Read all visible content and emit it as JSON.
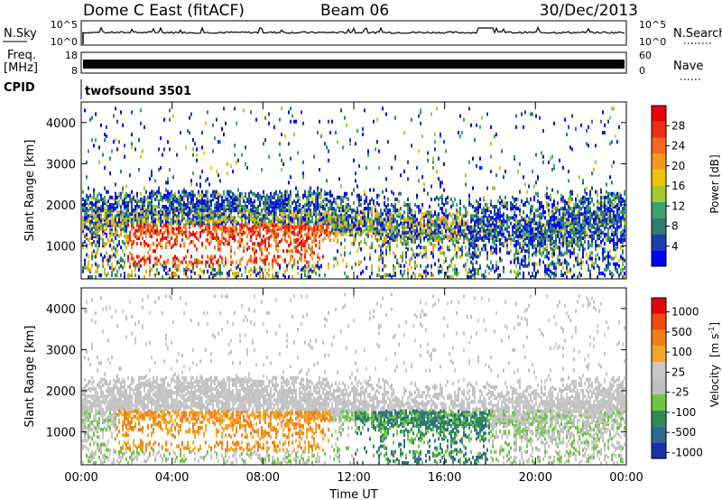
{
  "header": {
    "title": "Dome C East (fitACF)",
    "beam": "Beam 06",
    "date": "30/Dec/2013"
  },
  "nsky_panel": {
    "left_label": "N.Sky",
    "left_ticks": [
      "10^5",
      "10^0"
    ],
    "right_label": "N.Search",
    "right_ticks": [
      "10^5",
      "10^0"
    ]
  },
  "freq_panel": {
    "left_label_line1": "Freq.",
    "left_label_line2": "[MHz]",
    "left_ticks": [
      "18",
      "8"
    ],
    "right_label": "Nave",
    "right_ticks": [
      "60",
      "0"
    ]
  },
  "cpid": {
    "label": "CPID",
    "value": "twofsound 3501"
  },
  "chart_data": [
    {
      "type": "heatmap",
      "variable": "Power",
      "ylabel": "Slant Range [km]",
      "ylim": [
        200,
        4500
      ],
      "y_ticks": [
        "1000",
        "2000",
        "3000",
        "4000"
      ],
      "xlabel": "Time UT",
      "x_ticks": [
        "00:00",
        "04:00",
        "08:00",
        "12:00",
        "16:00",
        "20:00",
        "00:00"
      ],
      "colorbar": {
        "label": "Power [dB]",
        "ticks": [
          "4",
          "8",
          "12",
          "16",
          "20",
          "24",
          "28"
        ],
        "range": [
          0,
          30
        ],
        "colors": [
          "#0000ff",
          "#1a3fa6",
          "#2e7d6e",
          "#3aa36f",
          "#a3c832",
          "#f2c200",
          "#f59a1f",
          "#f36a1d",
          "#ee2d16",
          "#e8000b"
        ]
      }
    },
    {
      "type": "heatmap",
      "variable": "Velocity",
      "ylabel": "Slant Range [km]",
      "ylim": [
        200,
        4500
      ],
      "y_ticks": [
        "1000",
        "2000",
        "3000",
        "4000"
      ],
      "xlabel": "Time UT",
      "x_ticks": [
        "00:00",
        "04:00",
        "08:00",
        "12:00",
        "16:00",
        "20:00",
        "00:00"
      ],
      "colorbar": {
        "label": "Velocity",
        "units": "[m s",
        "units_exp": "-1",
        "ticks": [
          "1000",
          "500",
          "100",
          "25",
          "-25",
          "-100",
          "-500",
          "-1000"
        ],
        "colors": [
          "#1a2fb0",
          "#2d6b8c",
          "#2f8a5a",
          "#6cc640",
          "#c0c0c0",
          "#c8c8c8",
          "#f5a623",
          "#f07f1a",
          "#ee4a12",
          "#e8000b"
        ]
      }
    }
  ]
}
